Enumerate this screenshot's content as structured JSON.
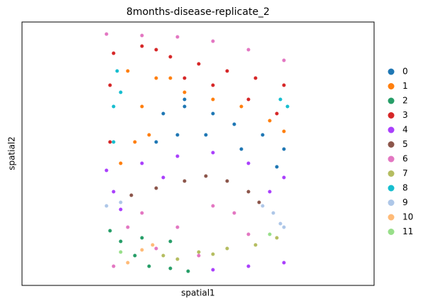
{
  "chart_data": {
    "type": "scatter",
    "title": "8months-disease-replicate_2",
    "x_label": "spatial1",
    "y_label": "spatial2",
    "xlim": [
      0,
      496
    ],
    "ylim": [
      371,
      0
    ],
    "series": [
      {
        "name": "0",
        "color": "#1f77b4",
        "x": [
          199,
          229,
          269,
          299,
          339,
          369,
          359,
          189,
          219,
          259,
          309,
          229
        ],
        "y": [
          129,
          119,
          129,
          144,
          159,
          179,
          204,
          169,
          159,
          159,
          179,
          109
        ]
      },
      {
        "name": "1",
        "color": "#ff7f0e",
        "x": [
          149,
          169,
          159,
          139,
          189,
          229,
          269,
          309,
          349,
          369,
          179,
          209
        ],
        "y": [
          69,
          119,
          169,
          199,
          79,
          99,
          109,
          119,
          139,
          154,
          159,
          79
        ]
      },
      {
        "name": "2",
        "color": "#279e68",
        "x": [
          124,
          169,
          209,
          139,
          159,
          179,
          209,
          234
        ],
        "y": [
          294,
          304,
          309,
          309,
          329,
          344,
          347,
          351
        ]
      },
      {
        "name": "3",
        "color": "#d62728",
        "x": [
          129,
          169,
          209,
          249,
          289,
          329,
          369,
          269,
          319,
          359,
          124,
          124,
          229,
          189
        ],
        "y": [
          44,
          34,
          49,
          59,
          69,
          79,
          89,
          89,
          109,
          129,
          89,
          169,
          79,
          39
        ]
      },
      {
        "name": "4",
        "color": "#aa40fc",
        "x": [
          119,
          169,
          219,
          269,
          319,
          369,
          129,
          199,
          349,
          269,
          319,
          369,
          139
        ],
        "y": [
          209,
          199,
          189,
          184,
          199,
          219,
          239,
          219,
          239,
          349,
          344,
          339,
          264
        ]
      },
      {
        "name": "5",
        "color": "#8c564b",
        "x": [
          154,
          189,
          229,
          259,
          289,
          319,
          334
        ],
        "y": [
          244,
          234,
          224,
          217,
          224,
          239,
          254
        ]
      },
      {
        "name": "6",
        "color": "#e377c2",
        "x": [
          119,
          169,
          219,
          269,
          319,
          369,
          169,
          219,
          269,
          319,
          189,
          249,
          149,
          299,
          129
        ],
        "y": [
          17,
          19,
          21,
          27,
          39,
          54,
          269,
          289,
          259,
          299,
          319,
          329,
          289,
          269,
          344
        ]
      },
      {
        "name": "7",
        "color": "#b5bd61",
        "x": [
          199,
          249,
          289,
          329,
          359,
          269,
          219
        ],
        "y": [
          329,
          324,
          319,
          314,
          304,
          327,
          334
        ]
      },
      {
        "name": "8",
        "color": "#17becf",
        "x": [
          134,
          129,
          129,
          139,
          364,
          374
        ],
        "y": [
          69,
          119,
          169,
          99,
          109,
          119
        ]
      },
      {
        "name": "9",
        "color": "#aec7e8",
        "x": [
          119,
          139,
          339,
          354,
          364,
          369
        ],
        "y": [
          259,
          254,
          259,
          269,
          284,
          289
        ]
      },
      {
        "name": "10",
        "color": "#ffbb78",
        "x": [
          169,
          184,
          149
        ],
        "y": [
          321,
          314,
          339
        ]
      },
      {
        "name": "11",
        "color": "#98df8a",
        "x": [
          349,
          139
        ],
        "y": [
          299,
          324
        ]
      }
    ]
  }
}
